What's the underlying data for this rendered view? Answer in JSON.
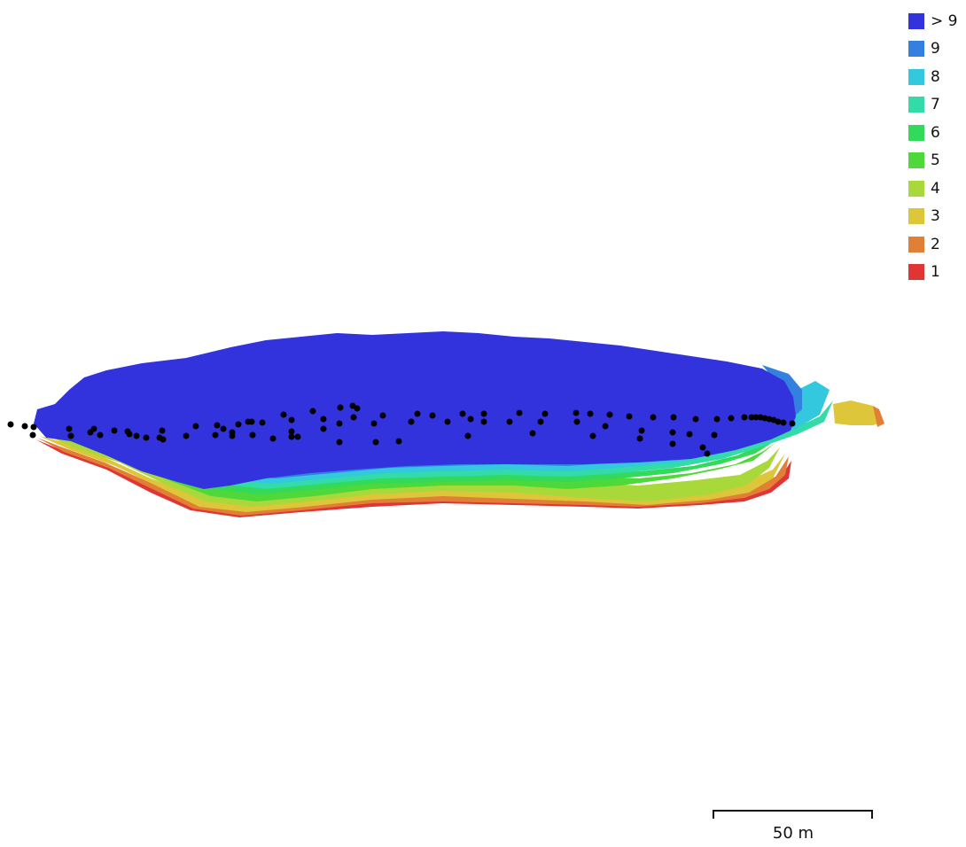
{
  "legend": {
    "entries": [
      {
        "label": "> 9",
        "color": "#3333dd"
      },
      {
        "label": "9",
        "color": "#3380e0"
      },
      {
        "label": "8",
        "color": "#33c8dd"
      },
      {
        "label": "7",
        "color": "#33dba8"
      },
      {
        "label": "6",
        "color": "#33d95a"
      },
      {
        "label": "5",
        "color": "#4fd83a"
      },
      {
        "label": "4",
        "color": "#a8d83a"
      },
      {
        "label": "3",
        "color": "#dec63a"
      },
      {
        "label": "2",
        "color": "#e07f35"
      },
      {
        "label": "1",
        "color": "#df3535"
      }
    ]
  },
  "scale": {
    "label": "50 m"
  }
}
